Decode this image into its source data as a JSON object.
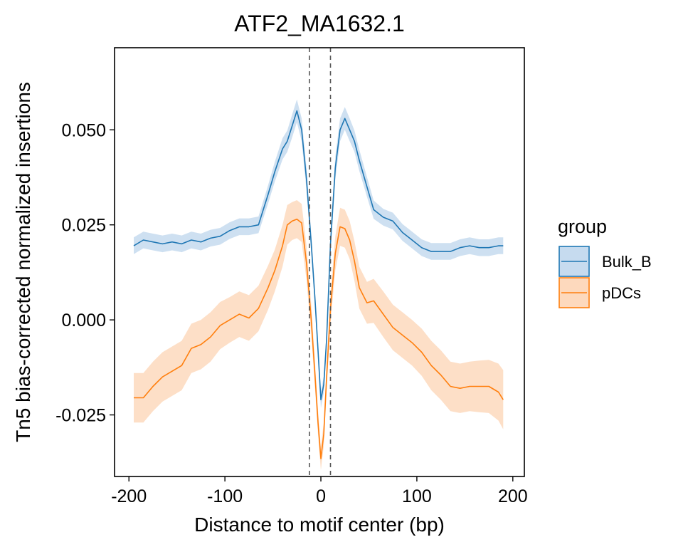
{
  "chart_data": {
    "type": "line",
    "title": "ATF2_MA1632.1",
    "xlabel": "Distance to motif center (bp)",
    "ylabel": "Tn5 bias-corrected normalized insertions",
    "xlim": [
      -215,
      212
    ],
    "ylim": [
      -0.0412,
      0.0716
    ],
    "x_ticks": [
      -200,
      -100,
      0,
      100,
      200
    ],
    "x_tick_labels": [
      "-200",
      "-100",
      "0",
      "100",
      "200"
    ],
    "y_ticks": [
      -0.025,
      0.0,
      0.025,
      0.05
    ],
    "y_tick_labels": [
      "-0.025",
      "0.000",
      "0.025",
      "0.050"
    ],
    "vlines": [
      -12,
      10
    ],
    "grid": false,
    "legend": {
      "title": "group",
      "placement": "right"
    },
    "x": [
      -195,
      -185,
      -175,
      -165,
      -155,
      -145,
      -135,
      -125,
      -115,
      -105,
      -95,
      -85,
      -75,
      -65,
      -55,
      -48,
      -40,
      -35,
      -30,
      -25,
      -20,
      -15,
      -10,
      -6,
      -3,
      0,
      3,
      6,
      10,
      15,
      20,
      25,
      30,
      35,
      40,
      48,
      55,
      65,
      75,
      85,
      95,
      105,
      115,
      125,
      135,
      145,
      155,
      165,
      175,
      185,
      190
    ],
    "series": [
      {
        "name": "Bulk_B",
        "color": "#1f77b4",
        "fill": "#c6dbef",
        "values": [
          0.0195,
          0.021,
          0.0205,
          0.02,
          0.0205,
          0.02,
          0.021,
          0.0205,
          0.0215,
          0.022,
          0.0235,
          0.0245,
          0.0245,
          0.025,
          0.033,
          0.039,
          0.045,
          0.047,
          0.051,
          0.055,
          0.05,
          0.037,
          0.02,
          0.005,
          -0.008,
          -0.021,
          -0.017,
          -0.005,
          0.02,
          0.04,
          0.05,
          0.053,
          0.05,
          0.047,
          0.042,
          0.035,
          0.029,
          0.027,
          0.026,
          0.023,
          0.021,
          0.019,
          0.018,
          0.018,
          0.018,
          0.019,
          0.0195,
          0.019,
          0.019,
          0.0195,
          0.0195
        ],
        "ci": [
          0.0022,
          0.0022,
          0.0022,
          0.0022,
          0.0022,
          0.0022,
          0.0022,
          0.0022,
          0.0022,
          0.0022,
          0.0022,
          0.0022,
          0.0022,
          0.0022,
          0.0024,
          0.0026,
          0.0028,
          0.0028,
          0.003,
          0.003,
          0.003,
          0.003,
          0.0025,
          0.0022,
          0.0022,
          0.0022,
          0.0022,
          0.0022,
          0.0025,
          0.003,
          0.003,
          0.003,
          0.003,
          0.0028,
          0.0028,
          0.0026,
          0.0024,
          0.0022,
          0.0022,
          0.0022,
          0.0022,
          0.0022,
          0.0022,
          0.0022,
          0.0022,
          0.0022,
          0.0022,
          0.0022,
          0.0022,
          0.0022,
          0.0022
        ]
      },
      {
        "name": "pDCs",
        "color": "#ff7f0e",
        "fill": "#fdd9bd",
        "values": [
          -0.0205,
          -0.0205,
          -0.0175,
          -0.015,
          -0.0135,
          -0.012,
          -0.0075,
          -0.0065,
          -0.0045,
          -0.0015,
          0.0,
          0.0015,
          0.0005,
          0.003,
          0.0085,
          0.013,
          0.0195,
          0.025,
          0.026,
          0.0265,
          0.0255,
          0.015,
          0.0,
          -0.015,
          -0.027,
          -0.0365,
          -0.03,
          -0.015,
          0.003,
          0.0175,
          0.0245,
          0.024,
          0.021,
          0.0155,
          0.0085,
          0.0045,
          0.005,
          0.0015,
          -0.002,
          -0.004,
          -0.006,
          -0.0085,
          -0.012,
          -0.0145,
          -0.0175,
          -0.018,
          -0.0175,
          -0.0175,
          -0.0175,
          -0.019,
          -0.021
        ],
        "ci": [
          0.0065,
          0.0065,
          0.0065,
          0.0065,
          0.0065,
          0.0065,
          0.0065,
          0.0065,
          0.0065,
          0.0062,
          0.006,
          0.006,
          0.006,
          0.006,
          0.0058,
          0.0055,
          0.0055,
          0.0052,
          0.005,
          0.005,
          0.005,
          0.0045,
          0.004,
          0.0035,
          0.0032,
          0.003,
          0.0032,
          0.0035,
          0.004,
          0.0045,
          0.005,
          0.005,
          0.005,
          0.0052,
          0.0055,
          0.0055,
          0.0058,
          0.006,
          0.006,
          0.006,
          0.006,
          0.0062,
          0.0065,
          0.0065,
          0.0065,
          0.0065,
          0.0065,
          0.0068,
          0.007,
          0.0075,
          0.0078
        ]
      }
    ]
  }
}
